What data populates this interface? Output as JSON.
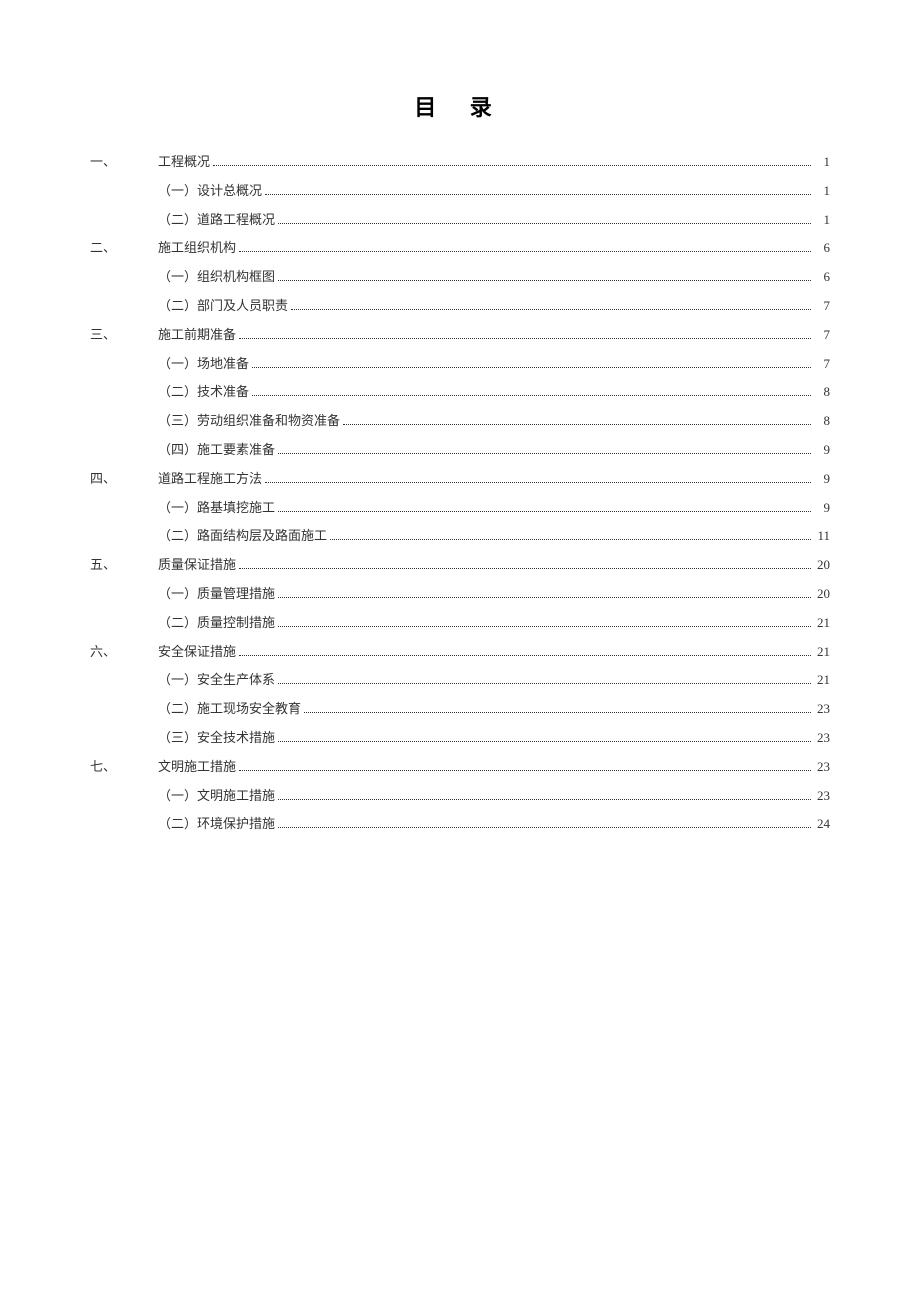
{
  "title": "目 录",
  "entries": [
    {
      "level": 1,
      "num": "一、",
      "indent": true,
      "text": "工程概况",
      "page": "1"
    },
    {
      "level": 2,
      "num": "",
      "text": "（一）设计总概况",
      "page": "1"
    },
    {
      "level": 2,
      "num": "",
      "text": "（二）道路工程概况",
      "page": "1"
    },
    {
      "level": 1,
      "num": "二、",
      "indent": true,
      "text": "施工组织机构",
      "page": "6"
    },
    {
      "level": 2,
      "num": "",
      "text": "（一）组织机构框图",
      "page": "6"
    },
    {
      "level": 2,
      "num": "",
      "text": "（二）部门及人员职责",
      "page": "7"
    },
    {
      "level": 1,
      "num": "三、",
      "indent": true,
      "text": "施工前期准备",
      "page": "7"
    },
    {
      "level": 2,
      "num": "",
      "text": "（一）场地准备",
      "page": "7"
    },
    {
      "level": 2,
      "num": "",
      "text": "（二）技术准备",
      "page": "8"
    },
    {
      "level": 2,
      "num": "",
      "text": "（三）劳动组织准备和物资准备",
      "page": "8"
    },
    {
      "level": 2,
      "num": "",
      "text": "（四）施工要素准备",
      "page": "9"
    },
    {
      "level": 1,
      "num": "四、",
      "indent": true,
      "text": "道路工程施工方法",
      "page": "9"
    },
    {
      "level": 2,
      "num": "",
      "text": "（一）路基填挖施工",
      "page": "9"
    },
    {
      "level": 2,
      "num": "",
      "text": "（二）路面结构层及路面施工",
      "page": "11"
    },
    {
      "level": 1,
      "num": "五、",
      "indent": true,
      "text": "质量保证措施",
      "page": "20"
    },
    {
      "level": 2,
      "num": "",
      "text": "（一）质量管理措施",
      "page": "20"
    },
    {
      "level": 2,
      "num": "",
      "text": "（二）质量控制措施",
      "page": "21"
    },
    {
      "level": 1,
      "num": "六、",
      "indent": true,
      "text": "安全保证措施",
      "page": "21"
    },
    {
      "level": 2,
      "num": "",
      "text": "（一）安全生产体系",
      "page": "21"
    },
    {
      "level": 2,
      "num": "",
      "text": "（二）施工现场安全教育",
      "page": "23"
    },
    {
      "level": 2,
      "num": "",
      "text": "（三）安全技术措施",
      "page": "23"
    },
    {
      "level": 1,
      "num": "七、",
      "indent": true,
      "text": "文明施工措施",
      "page": "23"
    },
    {
      "level": 2,
      "num": "",
      "text": "（一）文明施工措施",
      "page": "23"
    },
    {
      "level": 2,
      "num": "",
      "text": "（二）环境保护措施",
      "page": "24"
    }
  ],
  "styles": {
    "background_color": "#ffffff",
    "text_color": "#333333",
    "title_color": "#000000",
    "title_fontsize": 22,
    "entry_fontsize": 13,
    "line_spacing": 8,
    "dot_color": "#333333"
  }
}
